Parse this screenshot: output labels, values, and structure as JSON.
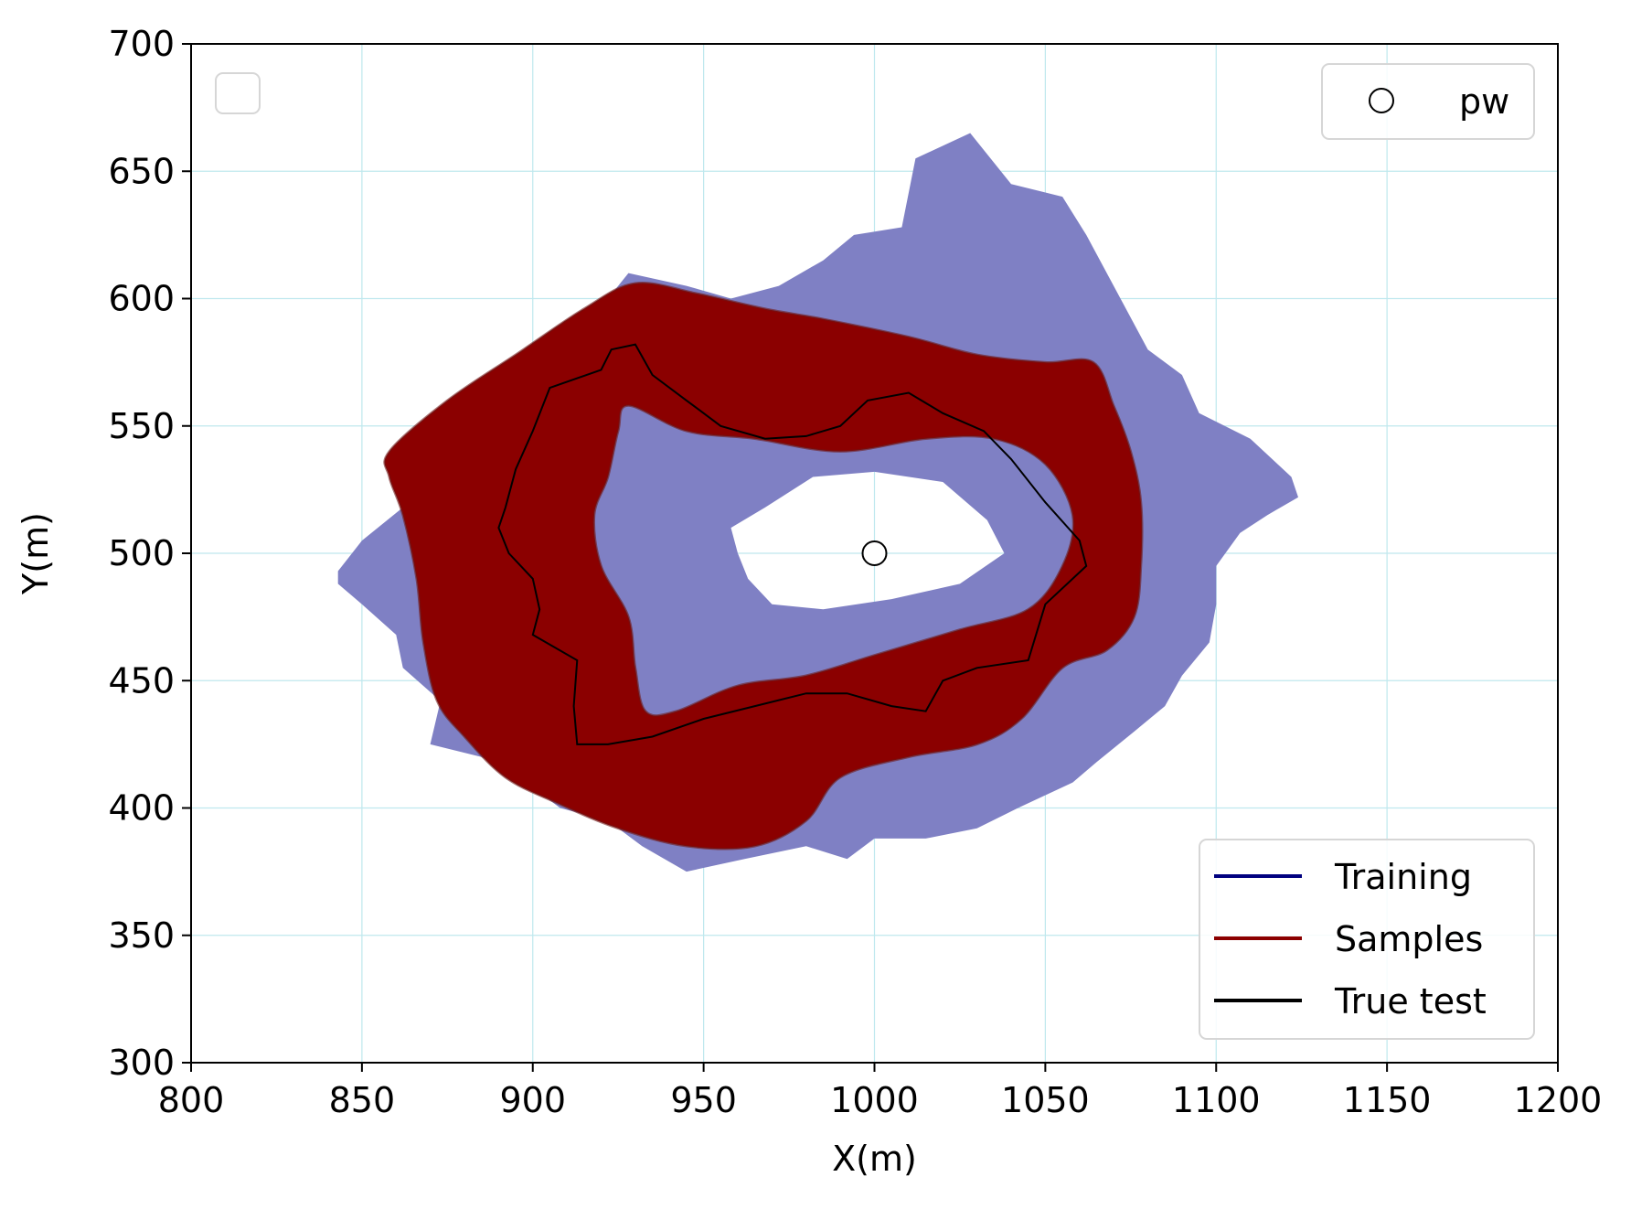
{
  "chart_data": {
    "type": "area",
    "title": "",
    "xlabel": "X(m)",
    "ylabel": "Y(m)",
    "xlim": [
      800,
      1200
    ],
    "ylim": [
      300,
      700
    ],
    "xticks": [
      800,
      850,
      900,
      950,
      1000,
      1050,
      1100,
      1150,
      1200
    ],
    "yticks": [
      300,
      350,
      400,
      450,
      500,
      550,
      600,
      650,
      700
    ],
    "grid": true,
    "grid_color": "#bfe8ee",
    "legend_upper_right": {
      "placement": "top-right",
      "entries": [
        {
          "label": "pw",
          "marker": "open-circle"
        }
      ]
    },
    "legend_upper_left": {
      "placement": "top-left",
      "entries": []
    },
    "legend_lower_right": {
      "placement": "bottom-right",
      "entries": [
        {
          "label": "Training",
          "color": "#00007f"
        },
        {
          "label": "Samples",
          "color": "#8b0000"
        },
        {
          "label": "True test",
          "color": "#000000"
        }
      ]
    },
    "pw_point": {
      "x": 1000,
      "y": 500
    },
    "series": [
      {
        "name": "Training",
        "color": "#7f80c4",
        "outer": [
          [
            843,
            493
          ],
          [
            850,
            505
          ],
          [
            862,
            518
          ],
          [
            875,
            530
          ],
          [
            875,
            545
          ],
          [
            885,
            560
          ],
          [
            908,
            570
          ],
          [
            910,
            585
          ],
          [
            922,
            600
          ],
          [
            928,
            610
          ],
          [
            945,
            605
          ],
          [
            958,
            600
          ],
          [
            972,
            605
          ],
          [
            985,
            615
          ],
          [
            994,
            625
          ],
          [
            1008,
            628
          ],
          [
            1012,
            655
          ],
          [
            1028,
            665
          ],
          [
            1040,
            645
          ],
          [
            1055,
            640
          ],
          [
            1062,
            625
          ],
          [
            1072,
            600
          ],
          [
            1080,
            580
          ],
          [
            1090,
            570
          ],
          [
            1095,
            555
          ],
          [
            1110,
            545
          ],
          [
            1122,
            530
          ],
          [
            1124,
            522
          ],
          [
            1115,
            515
          ],
          [
            1107,
            508
          ],
          [
            1100,
            495
          ],
          [
            1100,
            480
          ],
          [
            1098,
            465
          ],
          [
            1090,
            452
          ],
          [
            1085,
            440
          ],
          [
            1076,
            430
          ],
          [
            1065,
            418
          ],
          [
            1058,
            410
          ],
          [
            1042,
            400
          ],
          [
            1030,
            392
          ],
          [
            1015,
            388
          ],
          [
            1000,
            388
          ],
          [
            992,
            380
          ],
          [
            980,
            385
          ],
          [
            962,
            380
          ],
          [
            945,
            375
          ],
          [
            932,
            385
          ],
          [
            922,
            395
          ],
          [
            908,
            400
          ],
          [
            896,
            412
          ],
          [
            885,
            420
          ],
          [
            870,
            425
          ],
          [
            873,
            442
          ],
          [
            862,
            455
          ],
          [
            860,
            468
          ],
          [
            850,
            480
          ],
          [
            843,
            488
          ]
        ],
        "inner": [
          [
            928,
            560
          ],
          [
            952,
            552
          ],
          [
            990,
            538
          ],
          [
            1010,
            530
          ],
          [
            1030,
            520
          ],
          [
            1042,
            510
          ],
          [
            1038,
            495
          ],
          [
            1028,
            485
          ],
          [
            1010,
            475
          ],
          [
            985,
            465
          ],
          [
            965,
            460
          ],
          [
            948,
            462
          ],
          [
            935,
            470
          ],
          [
            924,
            480
          ],
          [
            918,
            495
          ],
          [
            918,
            515
          ],
          [
            920,
            535
          ],
          [
            922,
            550
          ]
        ],
        "hole": [
          [
            958,
            510
          ],
          [
            968,
            518
          ],
          [
            982,
            530
          ],
          [
            1000,
            532
          ],
          [
            1020,
            528
          ],
          [
            1033,
            513
          ],
          [
            1038,
            500
          ],
          [
            1025,
            488
          ],
          [
            1005,
            482
          ],
          [
            985,
            478
          ],
          [
            970,
            480
          ],
          [
            963,
            490
          ],
          [
            960,
            500
          ]
        ]
      },
      {
        "name": "Samples",
        "color": "#8b0000",
        "outer": [
          [
            858,
            540
          ],
          [
            875,
            560
          ],
          [
            895,
            578
          ],
          [
            915,
            596
          ],
          [
            930,
            606
          ],
          [
            948,
            602
          ],
          [
            968,
            596
          ],
          [
            985,
            592
          ],
          [
            1010,
            585
          ],
          [
            1030,
            578
          ],
          [
            1050,
            575
          ],
          [
            1064,
            575
          ],
          [
            1070,
            558
          ],
          [
            1075,
            540
          ],
          [
            1078,
            520
          ],
          [
            1078,
            495
          ],
          [
            1076,
            475
          ],
          [
            1068,
            462
          ],
          [
            1055,
            455
          ],
          [
            1043,
            435
          ],
          [
            1030,
            425
          ],
          [
            1010,
            420
          ],
          [
            990,
            412
          ],
          [
            980,
            395
          ],
          [
            965,
            385
          ],
          [
            945,
            385
          ],
          [
            925,
            392
          ],
          [
            907,
            402
          ],
          [
            892,
            412
          ],
          [
            880,
            428
          ],
          [
            872,
            442
          ],
          [
            868,
            465
          ],
          [
            866,
            490
          ],
          [
            862,
            515
          ],
          [
            858,
            530
          ]
        ],
        "inner": [
          [
            928,
            558
          ],
          [
            945,
            548
          ],
          [
            965,
            545
          ],
          [
            990,
            540
          ],
          [
            1015,
            545
          ],
          [
            1035,
            545
          ],
          [
            1050,
            535
          ],
          [
            1058,
            515
          ],
          [
            1055,
            495
          ],
          [
            1045,
            478
          ],
          [
            1025,
            470
          ],
          [
            1000,
            460
          ],
          [
            980,
            452
          ],
          [
            960,
            448
          ],
          [
            942,
            438
          ],
          [
            933,
            438
          ],
          [
            930,
            455
          ],
          [
            928,
            475
          ],
          [
            920,
            495
          ],
          [
            918,
            515
          ],
          [
            922,
            530
          ],
          [
            925,
            548
          ]
        ]
      },
      {
        "name": "True test",
        "color": "#000000",
        "line": [
          [
            892,
            518
          ],
          [
            895,
            533
          ],
          [
            900,
            548
          ],
          [
            905,
            565
          ],
          [
            920,
            572
          ],
          [
            923,
            580
          ],
          [
            930,
            582
          ],
          [
            935,
            570
          ],
          [
            945,
            560
          ],
          [
            955,
            550
          ],
          [
            968,
            545
          ],
          [
            980,
            546
          ],
          [
            990,
            550
          ],
          [
            998,
            560
          ],
          [
            1010,
            563
          ],
          [
            1020,
            555
          ],
          [
            1032,
            548
          ],
          [
            1040,
            537
          ],
          [
            1050,
            520
          ],
          [
            1060,
            505
          ],
          [
            1062,
            495
          ],
          [
            1050,
            480
          ],
          [
            1045,
            458
          ],
          [
            1030,
            455
          ],
          [
            1020,
            450
          ],
          [
            1015,
            438
          ],
          [
            1005,
            440
          ],
          [
            992,
            445
          ],
          [
            980,
            445
          ],
          [
            965,
            440
          ],
          [
            950,
            435
          ],
          [
            935,
            428
          ],
          [
            922,
            425
          ],
          [
            913,
            425
          ],
          [
            912,
            440
          ],
          [
            913,
            458
          ],
          [
            900,
            468
          ],
          [
            902,
            478
          ],
          [
            900,
            490
          ],
          [
            893,
            500
          ],
          [
            890,
            510
          ]
        ]
      }
    ]
  }
}
